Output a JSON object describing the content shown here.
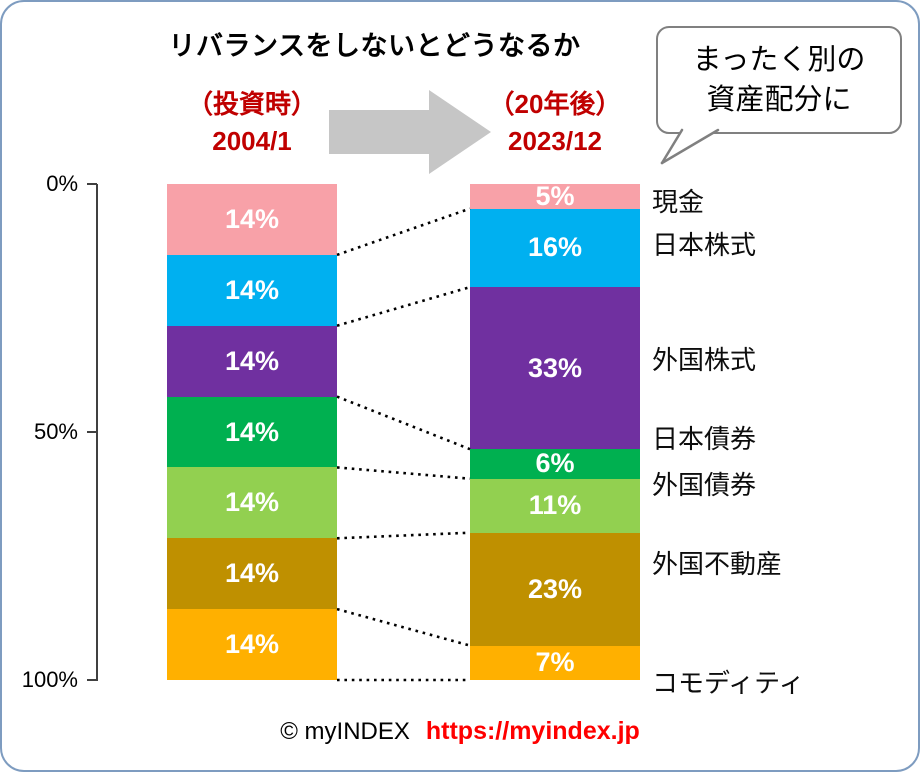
{
  "callout": {
    "line1": "まったく別の",
    "line2": "資産配分に"
  },
  "columns": {
    "left": {
      "caption": "（投資時）",
      "date": "2004/1"
    },
    "right": {
      "caption": "（20年後）",
      "date": "2023/12"
    }
  },
  "footer": {
    "credit": "© myINDEX",
    "url": "https://myindex.jp"
  },
  "colors": {
    "header_red": "#C00000",
    "url_red": "#FF0000",
    "arrow_gray": "#C6C6C6",
    "card_border": "#7E9CC0",
    "callout_border": "#808080",
    "connector_black": "#000000"
  },
  "chart_data": {
    "type": "bar",
    "subtype": "stacked-percentage-comparison",
    "title": "リバランスをしないとどうなるか",
    "categories": [
      "現金",
      "日本株式",
      "外国株式",
      "日本債券",
      "外国債券",
      "外国不動産",
      "コモディティ"
    ],
    "colors": [
      "#F8A1A8",
      "#00B0F0",
      "#7030A0",
      "#00B050",
      "#92D050",
      "#BF9000",
      "#FFB000"
    ],
    "series": [
      {
        "name": "（投資時）2004/1",
        "values": [
          14,
          14,
          14,
          14,
          14,
          14,
          14
        ]
      },
      {
        "name": "（20年後）2023/12",
        "values": [
          5,
          16,
          33,
          6,
          11,
          23,
          7
        ]
      }
    ],
    "value_suffix": "%",
    "yticks": [
      "0%",
      "50%",
      "100%"
    ],
    "ylim": [
      0,
      100
    ],
    "grid": false,
    "legend_position": "right"
  }
}
